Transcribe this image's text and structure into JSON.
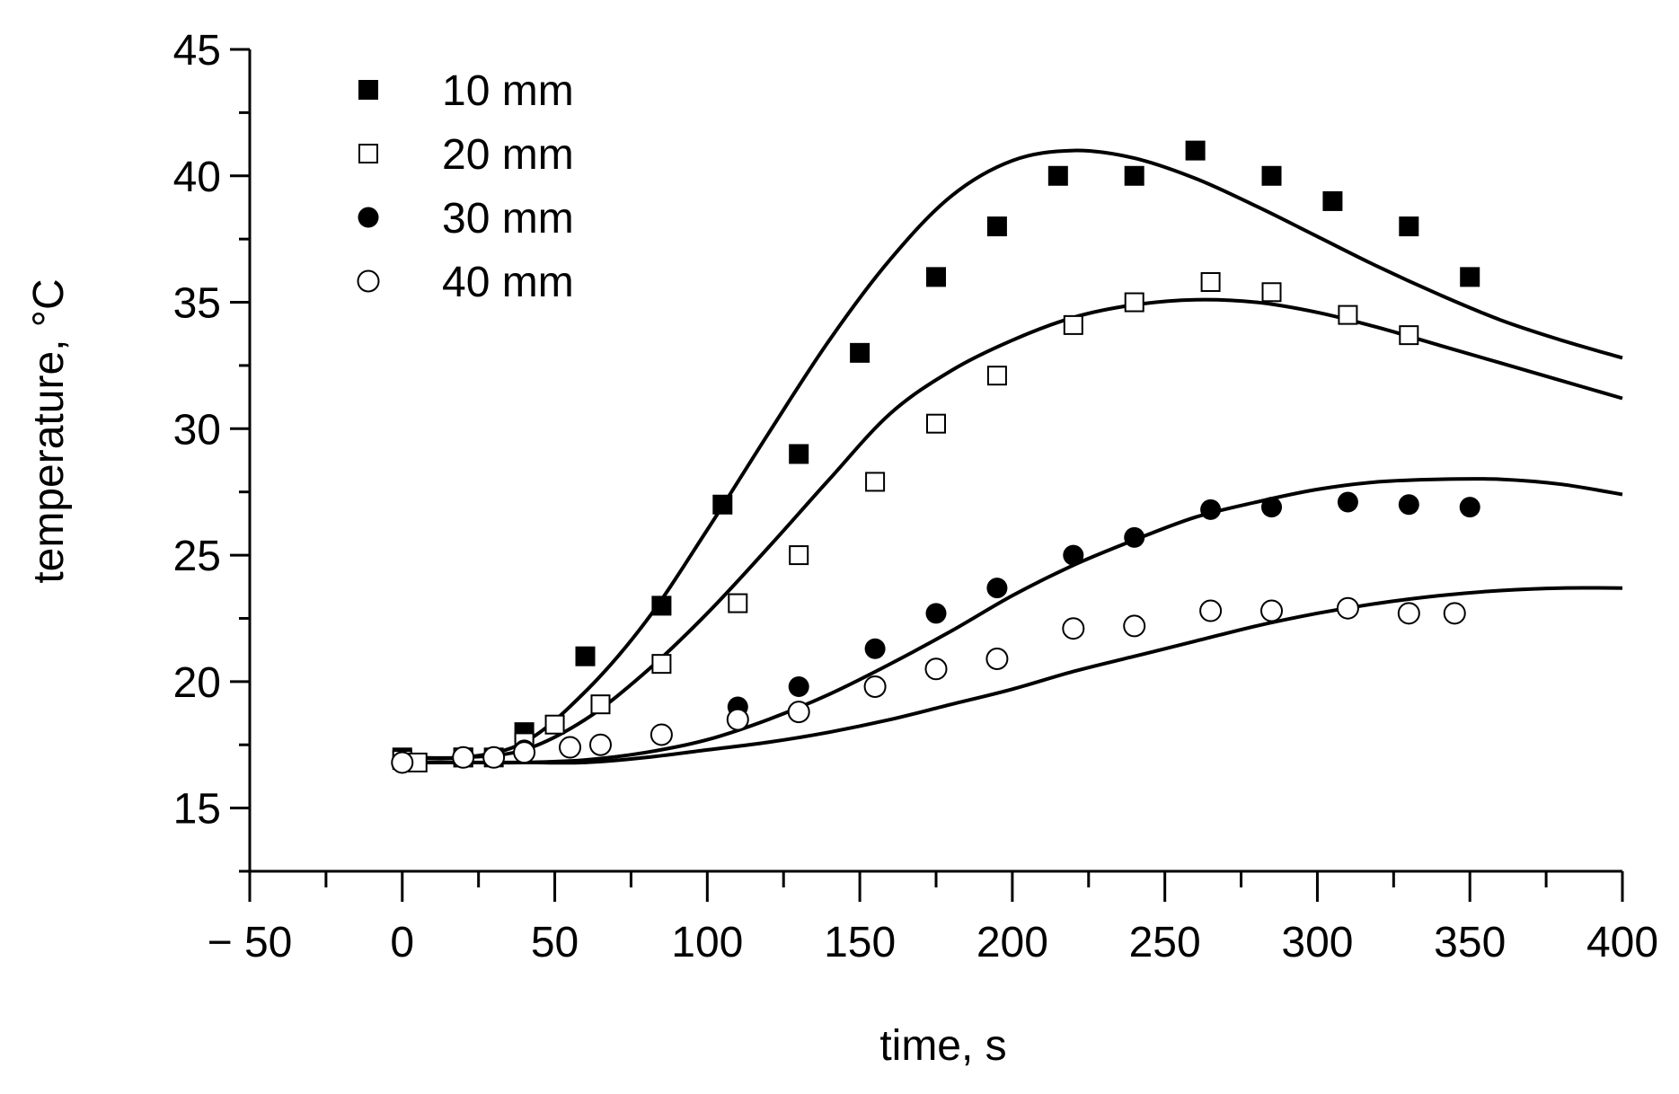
{
  "chart_data": {
    "type": "scatter",
    "title": "",
    "xlabel": "time, s",
    "ylabel": "temperature, °C",
    "xlim": [
      -50,
      400
    ],
    "ylim": [
      12.5,
      45
    ],
    "x_ticks": [
      -50,
      0,
      50,
      100,
      150,
      200,
      250,
      300,
      350,
      400
    ],
    "x_tick_labels": [
      "− 50",
      "0",
      "50",
      "100",
      "150",
      "200",
      "250",
      "300",
      "350",
      "400"
    ],
    "x_minor_step": 25,
    "y_ticks": [
      15,
      20,
      25,
      30,
      35,
      40,
      45
    ],
    "y_tick_labels": [
      "15",
      "20",
      "25",
      "30",
      "35",
      "40",
      "45"
    ],
    "y_minor_step": 2.5,
    "grid": false,
    "legend_position": "top-left",
    "series": [
      {
        "name": "10 mm",
        "marker": "filled-square",
        "x": [
          0,
          20,
          30,
          40,
          60,
          85,
          105,
          130,
          150,
          175,
          195,
          215,
          240,
          260,
          285,
          305,
          330,
          350
        ],
        "y": [
          17.0,
          17.0,
          17.0,
          18.0,
          21.0,
          23.0,
          27.0,
          29.0,
          33.0,
          36.0,
          38.0,
          40.0,
          40.0,
          41.0,
          40.0,
          39.0,
          38.0,
          36.0
        ],
        "model_curve": {
          "x": [
            0,
            20,
            40,
            60,
            80,
            100,
            120,
            140,
            160,
            180,
            200,
            220,
            240,
            260,
            280,
            300,
            320,
            340,
            360,
            380,
            400
          ],
          "y": [
            17.0,
            17.0,
            17.6,
            19.6,
            22.4,
            26.0,
            29.8,
            33.5,
            36.7,
            39.2,
            40.6,
            41.0,
            40.7,
            39.9,
            38.8,
            37.6,
            36.4,
            35.3,
            34.3,
            33.5,
            32.8
          ]
        }
      },
      {
        "name": "20 mm",
        "marker": "open-square",
        "x": [
          0,
          5,
          20,
          40,
          50,
          65,
          85,
          110,
          130,
          155,
          175,
          195,
          220,
          240,
          265,
          285,
          310,
          330
        ],
        "y": [
          16.9,
          16.8,
          17.0,
          17.6,
          18.3,
          19.1,
          20.7,
          23.1,
          25.0,
          27.9,
          30.2,
          32.1,
          34.1,
          35.0,
          35.8,
          35.4,
          34.5,
          33.7
        ],
        "model_curve": {
          "x": [
            0,
            20,
            40,
            60,
            80,
            100,
            120,
            140,
            160,
            180,
            200,
            220,
            240,
            260,
            280,
            300,
            320,
            340,
            360,
            380,
            400
          ],
          "y": [
            17.0,
            17.0,
            17.3,
            18.5,
            20.4,
            22.7,
            25.3,
            28.0,
            30.6,
            32.3,
            33.5,
            34.4,
            34.9,
            35.1,
            35.0,
            34.6,
            34.0,
            33.3,
            32.6,
            31.9,
            31.2
          ]
        }
      },
      {
        "name": "30 mm",
        "marker": "filled-circle",
        "x": [
          0,
          20,
          30,
          40,
          110,
          130,
          155,
          175,
          195,
          220,
          240,
          265,
          285,
          310,
          330,
          350
        ],
        "y": [
          16.8,
          17.0,
          17.0,
          17.3,
          19.0,
          19.8,
          21.3,
          22.7,
          23.7,
          25.0,
          25.7,
          26.8,
          26.9,
          27.1,
          27.0,
          26.9
        ],
        "model_curve": {
          "x": [
            0,
            20,
            40,
            60,
            80,
            100,
            120,
            140,
            160,
            180,
            200,
            220,
            240,
            260,
            280,
            300,
            320,
            340,
            360,
            380,
            400
          ],
          "y": [
            16.8,
            16.8,
            16.8,
            16.9,
            17.2,
            17.7,
            18.5,
            19.5,
            20.7,
            22.0,
            23.4,
            24.6,
            25.6,
            26.5,
            27.1,
            27.6,
            27.9,
            28.0,
            28.0,
            27.8,
            27.4
          ]
        }
      },
      {
        "name": "40 mm",
        "marker": "open-circle",
        "x": [
          0,
          20,
          30,
          40,
          55,
          65,
          85,
          110,
          130,
          155,
          175,
          195,
          220,
          240,
          265,
          285,
          310,
          330,
          345
        ],
        "y": [
          16.8,
          17.0,
          17.0,
          17.2,
          17.4,
          17.5,
          17.9,
          18.5,
          18.8,
          19.8,
          20.5,
          20.9,
          22.1,
          22.2,
          22.8,
          22.8,
          22.9,
          22.7,
          22.7
        ],
        "model_curve": {
          "x": [
            0,
            20,
            40,
            60,
            80,
            100,
            120,
            140,
            160,
            180,
            200,
            220,
            240,
            260,
            280,
            300,
            320,
            340,
            360,
            380,
            400
          ],
          "y": [
            16.8,
            16.8,
            16.8,
            16.8,
            17.0,
            17.3,
            17.6,
            18.0,
            18.5,
            19.1,
            19.7,
            20.4,
            21.0,
            21.6,
            22.2,
            22.7,
            23.1,
            23.4,
            23.6,
            23.7,
            23.7
          ]
        }
      }
    ]
  }
}
